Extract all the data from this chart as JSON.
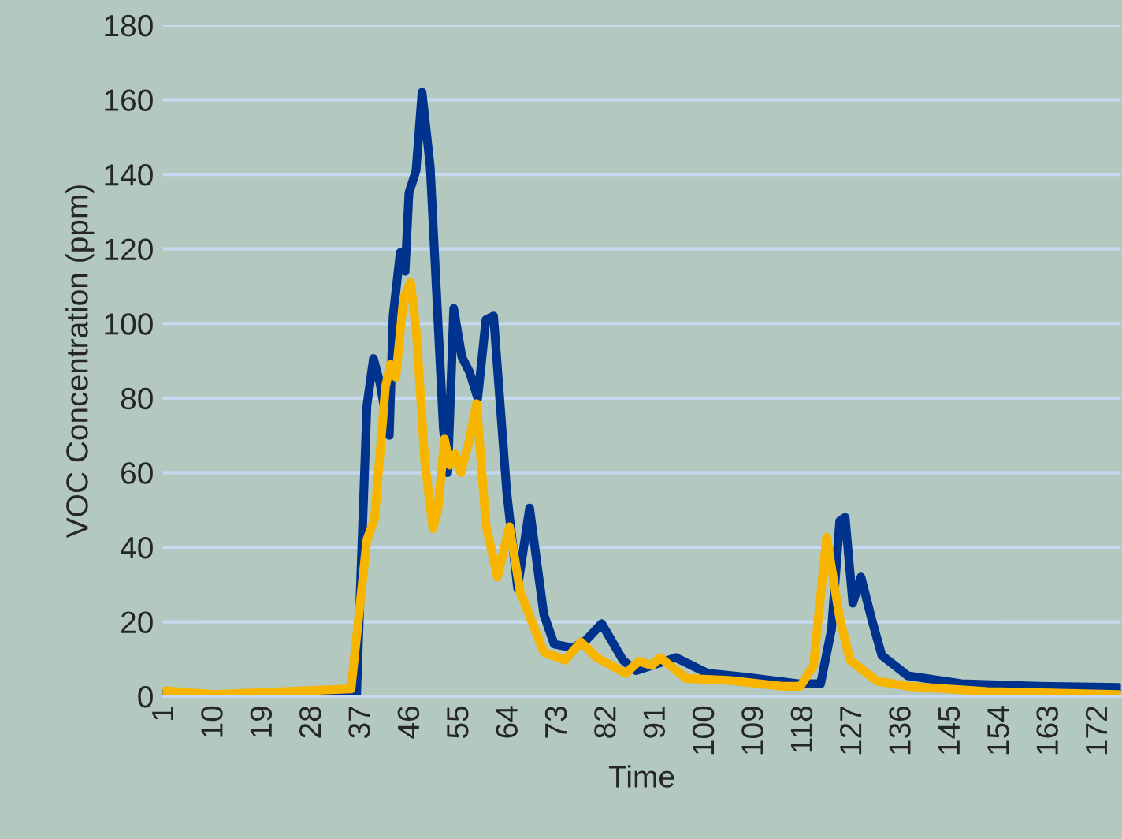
{
  "chart_data": {
    "type": "line",
    "xlabel": "Time",
    "ylabel": "VOC Concentration (ppm)",
    "xlim": [
      0.5,
      176
    ],
    "xticks": [
      1,
      10,
      19,
      28,
      37,
      46,
      55,
      64,
      73,
      82,
      91,
      100,
      109,
      118,
      127,
      136,
      145,
      154,
      163,
      172
    ],
    "ylim": [
      0,
      180
    ],
    "yticks": [
      0,
      20,
      40,
      60,
      80,
      100,
      120,
      140,
      160,
      180
    ],
    "grid": "y",
    "legend": false,
    "marker": "none",
    "line_style": "solid",
    "series": [
      {
        "color": "#00338d",
        "x": [
          1,
          10,
          36,
          37.9,
          39.1,
          40.3,
          42,
          42.7,
          44,
          44.9,
          45.6,
          46.9,
          48,
          49.5,
          51.9,
          52.7,
          53.8,
          55.3,
          56.7,
          58.2,
          59.7,
          61.1,
          63.5,
          65.5,
          67.7,
          70.3,
          72.2,
          75.6,
          78,
          80.9,
          84.8,
          87.2,
          94.5,
          100.3,
          107,
          116.8,
          121,
          123,
          124.5,
          125.5,
          126.9,
          128.4,
          130.3,
          132.2,
          137,
          146.8,
          161,
          175.6
        ],
        "values": [
          1,
          0,
          0,
          78,
          90.6,
          84,
          70,
          102,
          119,
          114,
          135,
          141,
          162,
          142,
          72,
          60,
          104,
          91,
          87,
          80,
          101,
          102,
          55,
          29,
          50.5,
          22,
          14,
          13,
          15,
          19.5,
          9.7,
          6.9,
          10.4,
          6.2,
          5.2,
          3.4,
          3.4,
          18,
          47,
          48,
          25,
          32,
          21,
          11,
          5.5,
          3.4,
          2.7,
          2.4
        ]
      },
      {
        "color": "#f7b500",
        "x": [
          1,
          10,
          35,
          37.9,
          39.3,
          41.3,
          42.2,
          43.2,
          44.6,
          45.9,
          47,
          48.5,
          50,
          50.9,
          52.1,
          53.1,
          54,
          55.1,
          56.7,
          58,
          59.7,
          61.8,
          64,
          66,
          70.3,
          74.2,
          77.1,
          80,
          85.3,
          87.7,
          90.1,
          91.6,
          96.4,
          104.2,
          113.9,
          117.3,
          119.7,
          122.1,
          124.5,
          126.4,
          131.3,
          137,
          151.6,
          175.6
        ],
        "values": [
          1.5,
          0.5,
          2,
          42,
          47.6,
          83,
          89,
          85.6,
          106.7,
          111,
          97,
          63,
          45,
          50,
          69,
          62,
          65,
          60,
          69,
          78.5,
          46,
          32,
          45.5,
          28,
          11.8,
          9.7,
          14.6,
          10.4,
          6.2,
          9.4,
          8.3,
          10.4,
          4.8,
          4.3,
          2.7,
          2.7,
          8.3,
          42.7,
          21,
          9.7,
          4.1,
          2.7,
          1.3,
          0.5
        ]
      }
    ]
  }
}
